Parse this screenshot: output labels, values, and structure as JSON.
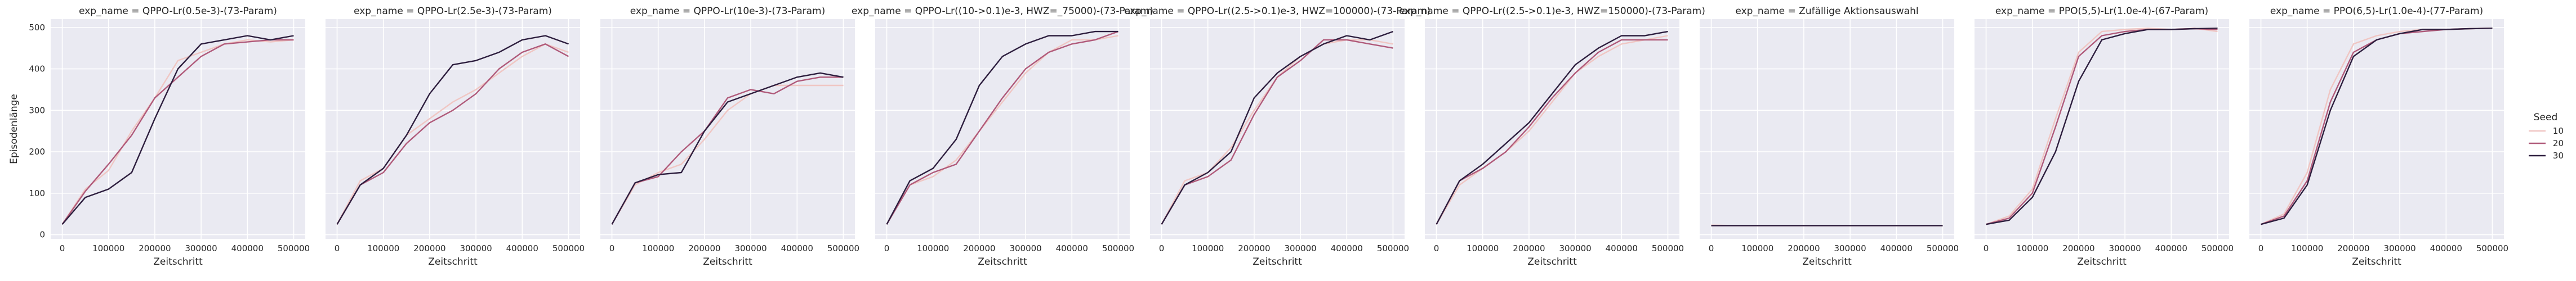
{
  "chart_data": {
    "type": "line",
    "ylabel": "Episodenlänge",
    "xlabel": "Zeitschritt",
    "xlim": [
      -25000,
      525000
    ],
    "ylim": [
      -10,
      520
    ],
    "x_ticks": [
      0,
      100000,
      200000,
      300000,
      400000,
      500000
    ],
    "x_tick_labels": [
      "0",
      "100000",
      "200000",
      "300000",
      "400000",
      "500000"
    ],
    "y_ticks": [
      0,
      100,
      200,
      300,
      400,
      500
    ],
    "y_tick_labels": [
      "0",
      "100",
      "200",
      "300",
      "400",
      "500"
    ],
    "grid": true,
    "legend": {
      "title": "Seed",
      "placement": "right",
      "entries": [
        {
          "label": "10",
          "color": "#f0c6c3"
        },
        {
          "label": "20",
          "color": "#b05a7a"
        },
        {
          "label": "30",
          "color": "#2d1e3e"
        }
      ]
    },
    "panels": [
      {
        "title": "exp_name = QPPO-Lr(0.5e-3)-(73-Param)",
        "series": [
          {
            "name": "10",
            "x": [
              0,
              50000,
              100000,
              150000,
              200000,
              250000,
              300000,
              350000,
              400000,
              450000,
              500000
            ],
            "y": [
              25,
              110,
              155,
              250,
              330,
              420,
              440,
              460,
              470,
              465,
              470
            ]
          },
          {
            "name": "20",
            "x": [
              0,
              50000,
              100000,
              150000,
              200000,
              250000,
              300000,
              350000,
              400000,
              450000,
              500000
            ],
            "y": [
              25,
              105,
              170,
              240,
              330,
              380,
              430,
              460,
              465,
              470,
              470
            ]
          },
          {
            "name": "30",
            "x": [
              0,
              50000,
              100000,
              150000,
              200000,
              250000,
              300000,
              350000,
              400000,
              450000,
              500000
            ],
            "y": [
              25,
              90,
              110,
              150,
              280,
              400,
              460,
              470,
              480,
              470,
              480
            ]
          }
        ]
      },
      {
        "title": "exp_name = QPPO-Lr(2.5e-3)-(73-Param)",
        "series": [
          {
            "name": "10",
            "x": [
              0,
              50000,
              100000,
              150000,
              200000,
              250000,
              300000,
              350000,
              400000,
              450000,
              500000
            ],
            "y": [
              25,
              130,
              160,
              240,
              280,
              320,
              350,
              390,
              430,
              460,
              440
            ]
          },
          {
            "name": "20",
            "x": [
              0,
              50000,
              100000,
              150000,
              200000,
              250000,
              300000,
              350000,
              400000,
              450000,
              500000
            ],
            "y": [
              25,
              120,
              150,
              220,
              270,
              300,
              340,
              400,
              440,
              460,
              430
            ]
          },
          {
            "name": "30",
            "x": [
              0,
              50000,
              100000,
              150000,
              200000,
              250000,
              300000,
              350000,
              400000,
              450000,
              500000
            ],
            "y": [
              25,
              120,
              160,
              240,
              340,
              410,
              420,
              440,
              470,
              480,
              460
            ]
          }
        ]
      },
      {
        "title": "exp_name = QPPO-Lr(10e-3)-(73-Param)",
        "series": [
          {
            "name": "10",
            "x": [
              0,
              50000,
              100000,
              150000,
              200000,
              250000,
              300000,
              350000,
              400000,
              450000,
              500000
            ],
            "y": [
              25,
              120,
              150,
              170,
              230,
              300,
              340,
              360,
              360,
              360,
              360
            ]
          },
          {
            "name": "20",
            "x": [
              0,
              50000,
              100000,
              150000,
              200000,
              250000,
              300000,
              350000,
              400000,
              450000,
              500000
            ],
            "y": [
              25,
              125,
              140,
              200,
              250,
              330,
              350,
              340,
              370,
              380,
              380
            ]
          },
          {
            "name": "30",
            "x": [
              0,
              50000,
              100000,
              150000,
              200000,
              250000,
              300000,
              350000,
              400000,
              450000,
              500000
            ],
            "y": [
              25,
              125,
              145,
              150,
              250,
              320,
              340,
              360,
              380,
              390,
              380
            ]
          }
        ]
      },
      {
        "title": "exp_name = QPPO-Lr((10->0.1)e-3, HWZ=_75000)-(73-Param)",
        "series": [
          {
            "name": "10",
            "x": [
              0,
              50000,
              100000,
              150000,
              200000,
              250000,
              300000,
              350000,
              400000,
              450000,
              500000
            ],
            "y": [
              25,
              120,
              140,
              180,
              250,
              320,
              390,
              440,
              470,
              470,
              480
            ]
          },
          {
            "name": "20",
            "x": [
              0,
              50000,
              100000,
              150000,
              200000,
              250000,
              300000,
              350000,
              400000,
              450000,
              500000
            ],
            "y": [
              25,
              120,
              150,
              170,
              250,
              330,
              400,
              440,
              460,
              470,
              490
            ]
          },
          {
            "name": "30",
            "x": [
              0,
              50000,
              100000,
              150000,
              200000,
              250000,
              300000,
              350000,
              400000,
              450000,
              500000
            ],
            "y": [
              25,
              130,
              160,
              230,
              360,
              430,
              460,
              480,
              480,
              490,
              490
            ]
          }
        ]
      },
      {
        "title": "exp_name = QPPO-Lr((2.5->0.1)e-3, HWZ=100000)-(73-Param)",
        "series": [
          {
            "name": "10",
            "x": [
              0,
              50000,
              100000,
              150000,
              200000,
              250000,
              300000,
              350000,
              400000,
              450000,
              500000
            ],
            "y": [
              25,
              130,
              150,
              210,
              300,
              380,
              430,
              460,
              470,
              470,
              460
            ]
          },
          {
            "name": "20",
            "x": [
              0,
              50000,
              100000,
              150000,
              200000,
              250000,
              300000,
              350000,
              400000,
              450000,
              500000
            ],
            "y": [
              25,
              120,
              140,
              180,
              290,
              380,
              420,
              470,
              470,
              460,
              450
            ]
          },
          {
            "name": "30",
            "x": [
              0,
              50000,
              100000,
              150000,
              200000,
              250000,
              300000,
              350000,
              400000,
              450000,
              500000
            ],
            "y": [
              25,
              120,
              150,
              200,
              330,
              390,
              430,
              460,
              480,
              470,
              490
            ]
          }
        ]
      },
      {
        "title": "exp_name = QPPO-Lr((2.5->0.1)e-3, HWZ=150000)-(73-Param)",
        "series": [
          {
            "name": "10",
            "x": [
              0,
              50000,
              100000,
              150000,
              200000,
              250000,
              300000,
              350000,
              400000,
              450000,
              500000
            ],
            "y": [
              25,
              120,
              160,
              200,
              250,
              320,
              390,
              430,
              460,
              470,
              480
            ]
          },
          {
            "name": "20",
            "x": [
              0,
              50000,
              100000,
              150000,
              200000,
              250000,
              300000,
              350000,
              400000,
              450000,
              500000
            ],
            "y": [
              25,
              130,
              160,
              200,
              260,
              330,
              390,
              440,
              470,
              470,
              470
            ]
          },
          {
            "name": "30",
            "x": [
              0,
              50000,
              100000,
              150000,
              200000,
              250000,
              300000,
              350000,
              400000,
              450000,
              500000
            ],
            "y": [
              25,
              130,
              170,
              220,
              270,
              340,
              410,
              450,
              480,
              480,
              490
            ]
          }
        ]
      },
      {
        "title": "exp_name = Zufällige Aktionsauswahl",
        "series": [
          {
            "name": "10",
            "x": [
              0,
              50000,
              100000,
              150000,
              200000,
              250000,
              300000,
              350000,
              400000,
              450000,
              500000
            ],
            "y": [
              23,
              22,
              22,
              22,
              22,
              22,
              22,
              22,
              22,
              22,
              22
            ]
          },
          {
            "name": "20",
            "x": [
              0,
              50000,
              100000,
              150000,
              200000,
              250000,
              300000,
              350000,
              400000,
              450000,
              500000
            ],
            "y": [
              22,
              22,
              22,
              22,
              22,
              22,
              22,
              22,
              22,
              22,
              22
            ]
          },
          {
            "name": "30",
            "x": [
              0,
              50000,
              100000,
              150000,
              200000,
              250000,
              300000,
              350000,
              400000,
              450000,
              500000
            ],
            "y": [
              22,
              22,
              22,
              22,
              22,
              22,
              22,
              22,
              22,
              22,
              22
            ]
          }
        ]
      },
      {
        "title": "exp_name = PPO(5,5)-Lr(1.0e-4)-(67-Param)",
        "series": [
          {
            "name": "10",
            "x": [
              0,
              50000,
              100000,
              150000,
              200000,
              250000,
              300000,
              350000,
              400000,
              450000,
              500000
            ],
            "y": [
              25,
              45,
              110,
              280,
              440,
              490,
              495,
              498,
              495,
              498,
              490
            ]
          },
          {
            "name": "20",
            "x": [
              0,
              50000,
              100000,
              150000,
              200000,
              250000,
              300000,
              350000,
              400000,
              450000,
              500000
            ],
            "y": [
              25,
              40,
              100,
              260,
              430,
              480,
              490,
              495,
              495,
              497,
              495
            ]
          },
          {
            "name": "30",
            "x": [
              0,
              50000,
              100000,
              150000,
              200000,
              250000,
              300000,
              350000,
              400000,
              450000,
              500000
            ],
            "y": [
              25,
              35,
              90,
              200,
              370,
              470,
              485,
              495,
              495,
              497,
              498
            ]
          }
        ]
      },
      {
        "title": "exp_name = PPO(6,5)-Lr(1.0e-4)-(77-Param)",
        "series": [
          {
            "name": "10",
            "x": [
              0,
              50000,
              100000,
              150000,
              200000,
              250000,
              300000,
              350000,
              400000,
              450000,
              500000
            ],
            "y": [
              25,
              50,
              150,
              350,
              460,
              480,
              490,
              495,
              495,
              497,
              498
            ]
          },
          {
            "name": "20",
            "x": [
              0,
              50000,
              100000,
              150000,
              200000,
              250000,
              300000,
              350000,
              400000,
              450000,
              500000
            ],
            "y": [
              25,
              45,
              130,
              320,
              440,
              470,
              485,
              490,
              495,
              497,
              498
            ]
          },
          {
            "name": "30",
            "x": [
              0,
              50000,
              100000,
              150000,
              200000,
              250000,
              300000,
              350000,
              400000,
              450000,
              500000
            ],
            "y": [
              25,
              40,
              120,
              300,
              430,
              470,
              485,
              495,
              495,
              497,
              498
            ]
          }
        ]
      }
    ]
  }
}
